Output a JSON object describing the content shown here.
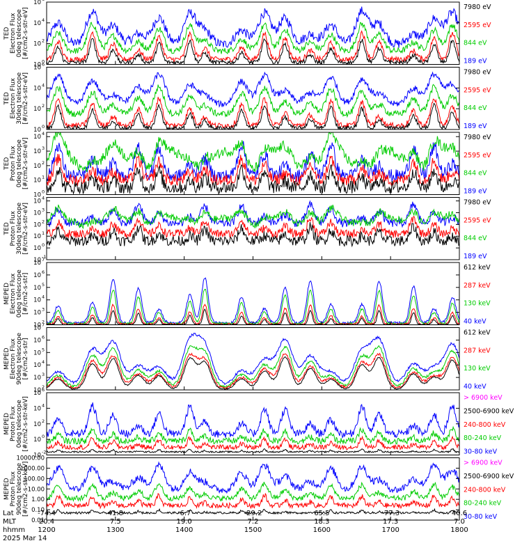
{
  "chart_data": {
    "type": "line",
    "date": "2025 Mar 14",
    "x_axis": {
      "unit": "hhmm",
      "ticks": [
        "1200",
        "1300",
        "1400",
        "1500",
        "1600",
        "1700",
        "1800"
      ],
      "row_labels": [
        "Lat",
        "MLT",
        "hhmm"
      ],
      "lat": [
        "-74.4",
        "41.8",
        "-6.7",
        "-29.2",
        "65.5",
        "-77.3",
        "40.6"
      ],
      "mlt": [
        "20.4",
        "7.5",
        "19.0",
        "7.2",
        "18.3",
        "17.3",
        "7.0"
      ]
    },
    "panels": [
      {
        "ylabel_lines": [
          "TED",
          "Electron Flux",
          "0deg telescope",
          "[#/cm2-s-str-eV]"
        ],
        "ylog": true,
        "ylim_exp": [
          0,
          6
        ],
        "ticks_exp": [
          0,
          2,
          4,
          6
        ],
        "legend": [
          {
            "name": "7980 eV",
            "color": "#000000"
          },
          {
            "name": "2595 eV",
            "color": "#ff0000"
          },
          {
            "name": "844 eV",
            "color": "#00cc00"
          },
          {
            "name": "189 eV",
            "color": "#0000ff"
          }
        ],
        "series": [
          {
            "color": "#0000ff",
            "base": 1.9,
            "noise": 0.45,
            "spike": 3.2,
            "spikeW": 0.13
          },
          {
            "color": "#00cc00",
            "base": 1.3,
            "noise": 0.3,
            "spike": 2.6,
            "spikeW": 0.1
          },
          {
            "color": "#ff0000",
            "base": 0.5,
            "noise": 0.25,
            "spike": 2.6,
            "spikeW": 0.07
          },
          {
            "color": "#000000",
            "base": 0.2,
            "noise": 0.2,
            "spike": 2.2,
            "spikeW": 0.06
          }
        ]
      },
      {
        "ylabel_lines": [
          "TED",
          "Electron Flux",
          "30deg telescope",
          "[#/cm2-s-str-eV]"
        ],
        "ylog": true,
        "ylim_exp": [
          0,
          6
        ],
        "ticks_exp": [
          0,
          2,
          4,
          6
        ],
        "legend": [
          {
            "name": "7980 eV",
            "color": "#000000"
          },
          {
            "name": "2595 eV",
            "color": "#ff0000"
          },
          {
            "name": "844 eV",
            "color": "#00cc00"
          },
          {
            "name": "189 eV",
            "color": "#0000ff"
          }
        ],
        "series": [
          {
            "color": "#0000ff",
            "base": 2.4,
            "noise": 0.3,
            "spike": 2.9,
            "spikeW": 0.13
          },
          {
            "color": "#00cc00",
            "base": 1.5,
            "noise": 0.3,
            "spike": 2.6,
            "spikeW": 0.1
          },
          {
            "color": "#ff0000",
            "base": 0.4,
            "noise": 0.25,
            "spike": 2.6,
            "spikeW": 0.07
          },
          {
            "color": "#000000",
            "base": 0.15,
            "noise": 0.2,
            "spike": 2.2,
            "spikeW": 0.06
          }
        ]
      },
      {
        "ylabel_lines": [
          "TED",
          "Proton Flux",
          "0deg telescope",
          "[#/cm2-s-str-eV]"
        ],
        "ylog": true,
        "ylim_exp": [
          0,
          4.3
        ],
        "ticks_exp": [
          0,
          1,
          2,
          3,
          4
        ],
        "legend": [
          {
            "name": "7980 eV",
            "color": "#000000"
          },
          {
            "name": "2595 eV",
            "color": "#ff0000"
          },
          {
            "name": "844 eV",
            "color": "#00cc00"
          },
          {
            "name": "189 eV",
            "color": "#0000ff"
          }
        ],
        "series": [
          {
            "color": "#0000ff",
            "base": 1.3,
            "noise": 0.45,
            "spike": 2.2,
            "spikeW": 0.08
          },
          {
            "color": "#00cc00",
            "base": 2.3,
            "noise": 0.35,
            "spike": 1.4,
            "spikeW": 0.1,
            "wave": 0.7
          },
          {
            "color": "#ff0000",
            "base": 1.0,
            "noise": 0.4,
            "spike": 1.5,
            "spikeW": 0.07
          },
          {
            "color": "#000000",
            "base": 0.5,
            "noise": 0.45,
            "spike": 1.3,
            "spikeW": 0.06
          }
        ]
      },
      {
        "ylabel_lines": [
          "TED",
          "Proton Flux",
          "30deg telescope",
          "[#/cm2-s-str-eV]"
        ],
        "ylog": true,
        "ylim_exp": [
          -1,
          4.3
        ],
        "ticks_exp": [
          -1,
          0,
          1,
          2,
          3,
          4
        ],
        "legend": [
          {
            "name": "7980 eV",
            "color": "#000000"
          },
          {
            "name": "2595 eV",
            "color": "#ff0000"
          },
          {
            "name": "844 eV",
            "color": "#00cc00"
          },
          {
            "name": "189 eV",
            "color": "#0000ff"
          }
        ],
        "series": [
          {
            "color": "#0000ff",
            "base": 2.1,
            "noise": 0.35,
            "spike": 1.6,
            "spikeW": 0.08
          },
          {
            "color": "#00cc00",
            "base": 2.2,
            "noise": 0.3,
            "spike": 1.2,
            "spikeW": 0.1,
            "wave": 0.35
          },
          {
            "color": "#ff0000",
            "base": 1.2,
            "noise": 0.35,
            "spike": 1.3,
            "spikeW": 0.07
          },
          {
            "color": "#000000",
            "base": 0.6,
            "noise": 0.45,
            "spike": 1.2,
            "spikeW": 0.06
          }
        ]
      },
      {
        "ylabel_lines": [
          "MEPED",
          "Electron Flux",
          "0deg telescope",
          "[#/cm2-s-str]"
        ],
        "ylog": true,
        "ylim_exp": [
          2,
          7
        ],
        "ticks_exp": [
          2,
          3,
          4,
          5,
          6,
          7
        ],
        "legend": [
          {
            "name": "612 keV",
            "color": "#000000"
          },
          {
            "name": "287 keV",
            "color": "#ff0000"
          },
          {
            "name": "130 keV",
            "color": "#00cc00"
          },
          {
            "name": "40 keV",
            "color": "#0000ff"
          }
        ],
        "series": [
          {
            "color": "#0000ff",
            "base": 2.15,
            "noise": 0.1,
            "spike": 3.6,
            "spikeW": 0.07
          },
          {
            "color": "#00cc00",
            "base": 2.1,
            "noise": 0.08,
            "spike": 2.8,
            "spikeW": 0.06
          },
          {
            "color": "#ff0000",
            "base": 2.05,
            "noise": 0.08,
            "spike": 1.6,
            "spikeW": 0.05
          },
          {
            "color": "#000000",
            "base": 2.02,
            "noise": 0.05,
            "spike": 1.2,
            "spikeW": 0.04
          }
        ]
      },
      {
        "ylabel_lines": [
          "MEPED",
          "Electron Flux",
          "90deg telescope",
          "[#/cm2-s-str]"
        ],
        "ylog": true,
        "ylim_exp": [
          2,
          7
        ],
        "ticks_exp": [
          2,
          3,
          4,
          5,
          6,
          7
        ],
        "legend": [
          {
            "name": "612 keV",
            "color": "#000000"
          },
          {
            "name": "287 keV",
            "color": "#ff0000"
          },
          {
            "name": "130 keV",
            "color": "#00cc00"
          },
          {
            "name": "40 keV",
            "color": "#0000ff"
          }
        ],
        "series": [
          {
            "color": "#0000ff",
            "base": 2.3,
            "noise": 0.1,
            "spike": 3.7,
            "spikeW": 0.16
          },
          {
            "color": "#00cc00",
            "base": 2.15,
            "noise": 0.1,
            "spike": 3.3,
            "spikeW": 0.14
          },
          {
            "color": "#ff0000",
            "base": 2.1,
            "noise": 0.1,
            "spike": 2.8,
            "spikeW": 0.13
          },
          {
            "color": "#000000",
            "base": 2.05,
            "noise": 0.05,
            "spike": 2.6,
            "spikeW": 0.12
          }
        ]
      },
      {
        "ylabel_lines": [
          "MEPED",
          "Proton Flux",
          "0deg telescope",
          "[#/cm2-s-str-keV]"
        ],
        "ylog": true,
        "ylim_exp": [
          -2,
          6
        ],
        "ticks_exp": [
          -2,
          0,
          2,
          4,
          6
        ],
        "legend": [
          {
            "name": "> 6900 keV",
            "color": "#ff00ff"
          },
          {
            "name": "2500-6900 keV",
            "color": "#000000"
          },
          {
            "name": "240-800 keV",
            "color": "#ff0000"
          },
          {
            "name": "80-240 keV",
            "color": "#00cc00"
          },
          {
            "name": "30-80 keV",
            "color": "#0000ff"
          }
        ],
        "series": [
          {
            "color": "#0000ff",
            "base": 0.7,
            "noise": 0.5,
            "spike": 3.6,
            "spikeW": 0.08
          },
          {
            "color": "#00cc00",
            "base": -0.2,
            "noise": 0.4,
            "spike": 1.5,
            "spikeW": 0.06
          },
          {
            "color": "#ff0000",
            "base": -1.0,
            "noise": 0.3,
            "spike": 1.2,
            "spikeW": 0.05
          },
          {
            "color": "#000000",
            "base": -1.6,
            "noise": 0.1,
            "spike": 0.4,
            "spikeW": 0.03
          }
        ]
      },
      {
        "ylabel_lines": [
          "MEPED",
          "Proton Flux",
          "90deg telescope",
          "[#/cm2-s-str-keV]"
        ],
        "ylog": true,
        "ylim_exp": [
          -2,
          4
        ],
        "ticks_exp": [
          -2,
          -1,
          0,
          1,
          2,
          3,
          4
        ],
        "tick_labels": [
          "0.01",
          "0.10",
          "1.00",
          "10.00",
          "100.00",
          "1000.00",
          "10000.00"
        ],
        "legend": [
          {
            "name": "> 6900 keV",
            "color": "#ff00ff"
          },
          {
            "name": "2500-6900 keV",
            "color": "#000000"
          },
          {
            "name": "240-800 keV",
            "color": "#ff0000"
          },
          {
            "name": "80-240 keV",
            "color": "#00cc00"
          },
          {
            "name": "30-80 keV",
            "color": "#0000ff"
          }
        ],
        "series": [
          {
            "color": "#0000ff",
            "base": 0.9,
            "noise": 0.35,
            "spike": 2.4,
            "spikeW": 0.12
          },
          {
            "color": "#00cc00",
            "base": 0.1,
            "noise": 0.25,
            "spike": 1.4,
            "spikeW": 0.08
          },
          {
            "color": "#ff0000",
            "base": -0.6,
            "noise": 0.25,
            "spike": 1.0,
            "spikeW": 0.05
          },
          {
            "color": "#000000",
            "base": -1.3,
            "noise": 0.1,
            "spike": 0.3,
            "spikeW": 0.03
          }
        ]
      }
    ],
    "pass_centers_hhmm": [
      1210,
      1240,
      1258,
      1320,
      1338,
      1405,
      1418,
      1450,
      1510,
      1528,
      1550,
      1608,
      1635,
      1650,
      1720,
      1738,
      1754
    ]
  }
}
